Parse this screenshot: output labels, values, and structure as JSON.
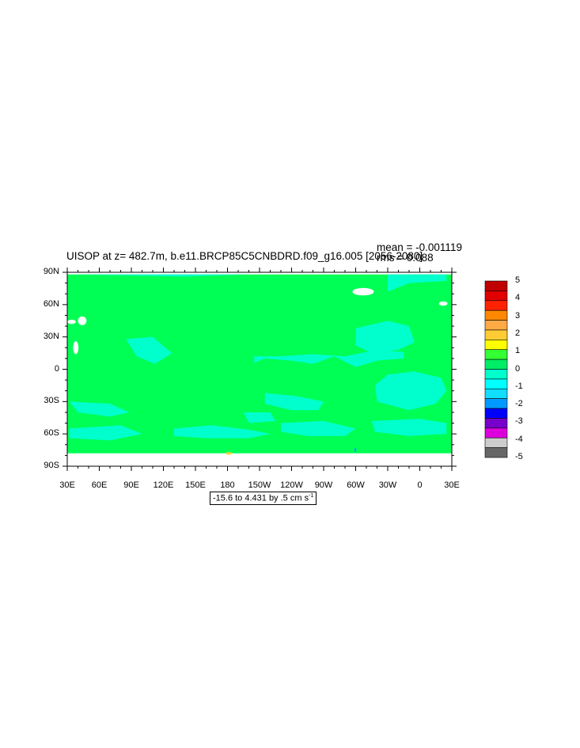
{
  "chart_data": {
    "type": "heatmap",
    "title": "UISOP at z= 482.7m, b.e11.BRCP85C5CNBDRD.f09_g16.005 [2056-2080]",
    "stats": {
      "mean": "mean = -0.001119",
      "rms": "rms = 0.088"
    },
    "x_tick_labels": [
      "30E",
      "60E",
      "90E",
      "120E",
      "150E",
      "180",
      "150W",
      "120W",
      "90W",
      "60W",
      "30W",
      "0",
      "30E"
    ],
    "y_tick_labels": [
      "90N",
      "60N",
      "30N",
      "0",
      "30S",
      "60S",
      "90S"
    ],
    "xlim": [
      30,
      390
    ],
    "ylim": [
      -90,
      90
    ],
    "range_text": "-15.6 to 4.431 by .5 cm s",
    "range_unit_exponent": "-1",
    "colorbar": {
      "labels": [
        "5",
        "4",
        "3",
        "2",
        "1",
        "0",
        "-1",
        "-2",
        "-3",
        "-4",
        "-5"
      ],
      "colors": [
        "#c00000",
        "#e00000",
        "#ff2200",
        "#ff8800",
        "#ffaa44",
        "#ffcc33",
        "#ffff00",
        "#33ff33",
        "#00ee66",
        "#00ffcc",
        "#00ffff",
        "#11ddff",
        "#0099ff",
        "#0000ff",
        "#7700cc",
        "#dd00dd",
        "#cccccc",
        "#666666"
      ]
    },
    "field_colors": {
      "positive": "#00ff55",
      "negative": "#00ffcc",
      "missing": "#ffffff"
    },
    "grid": false
  }
}
